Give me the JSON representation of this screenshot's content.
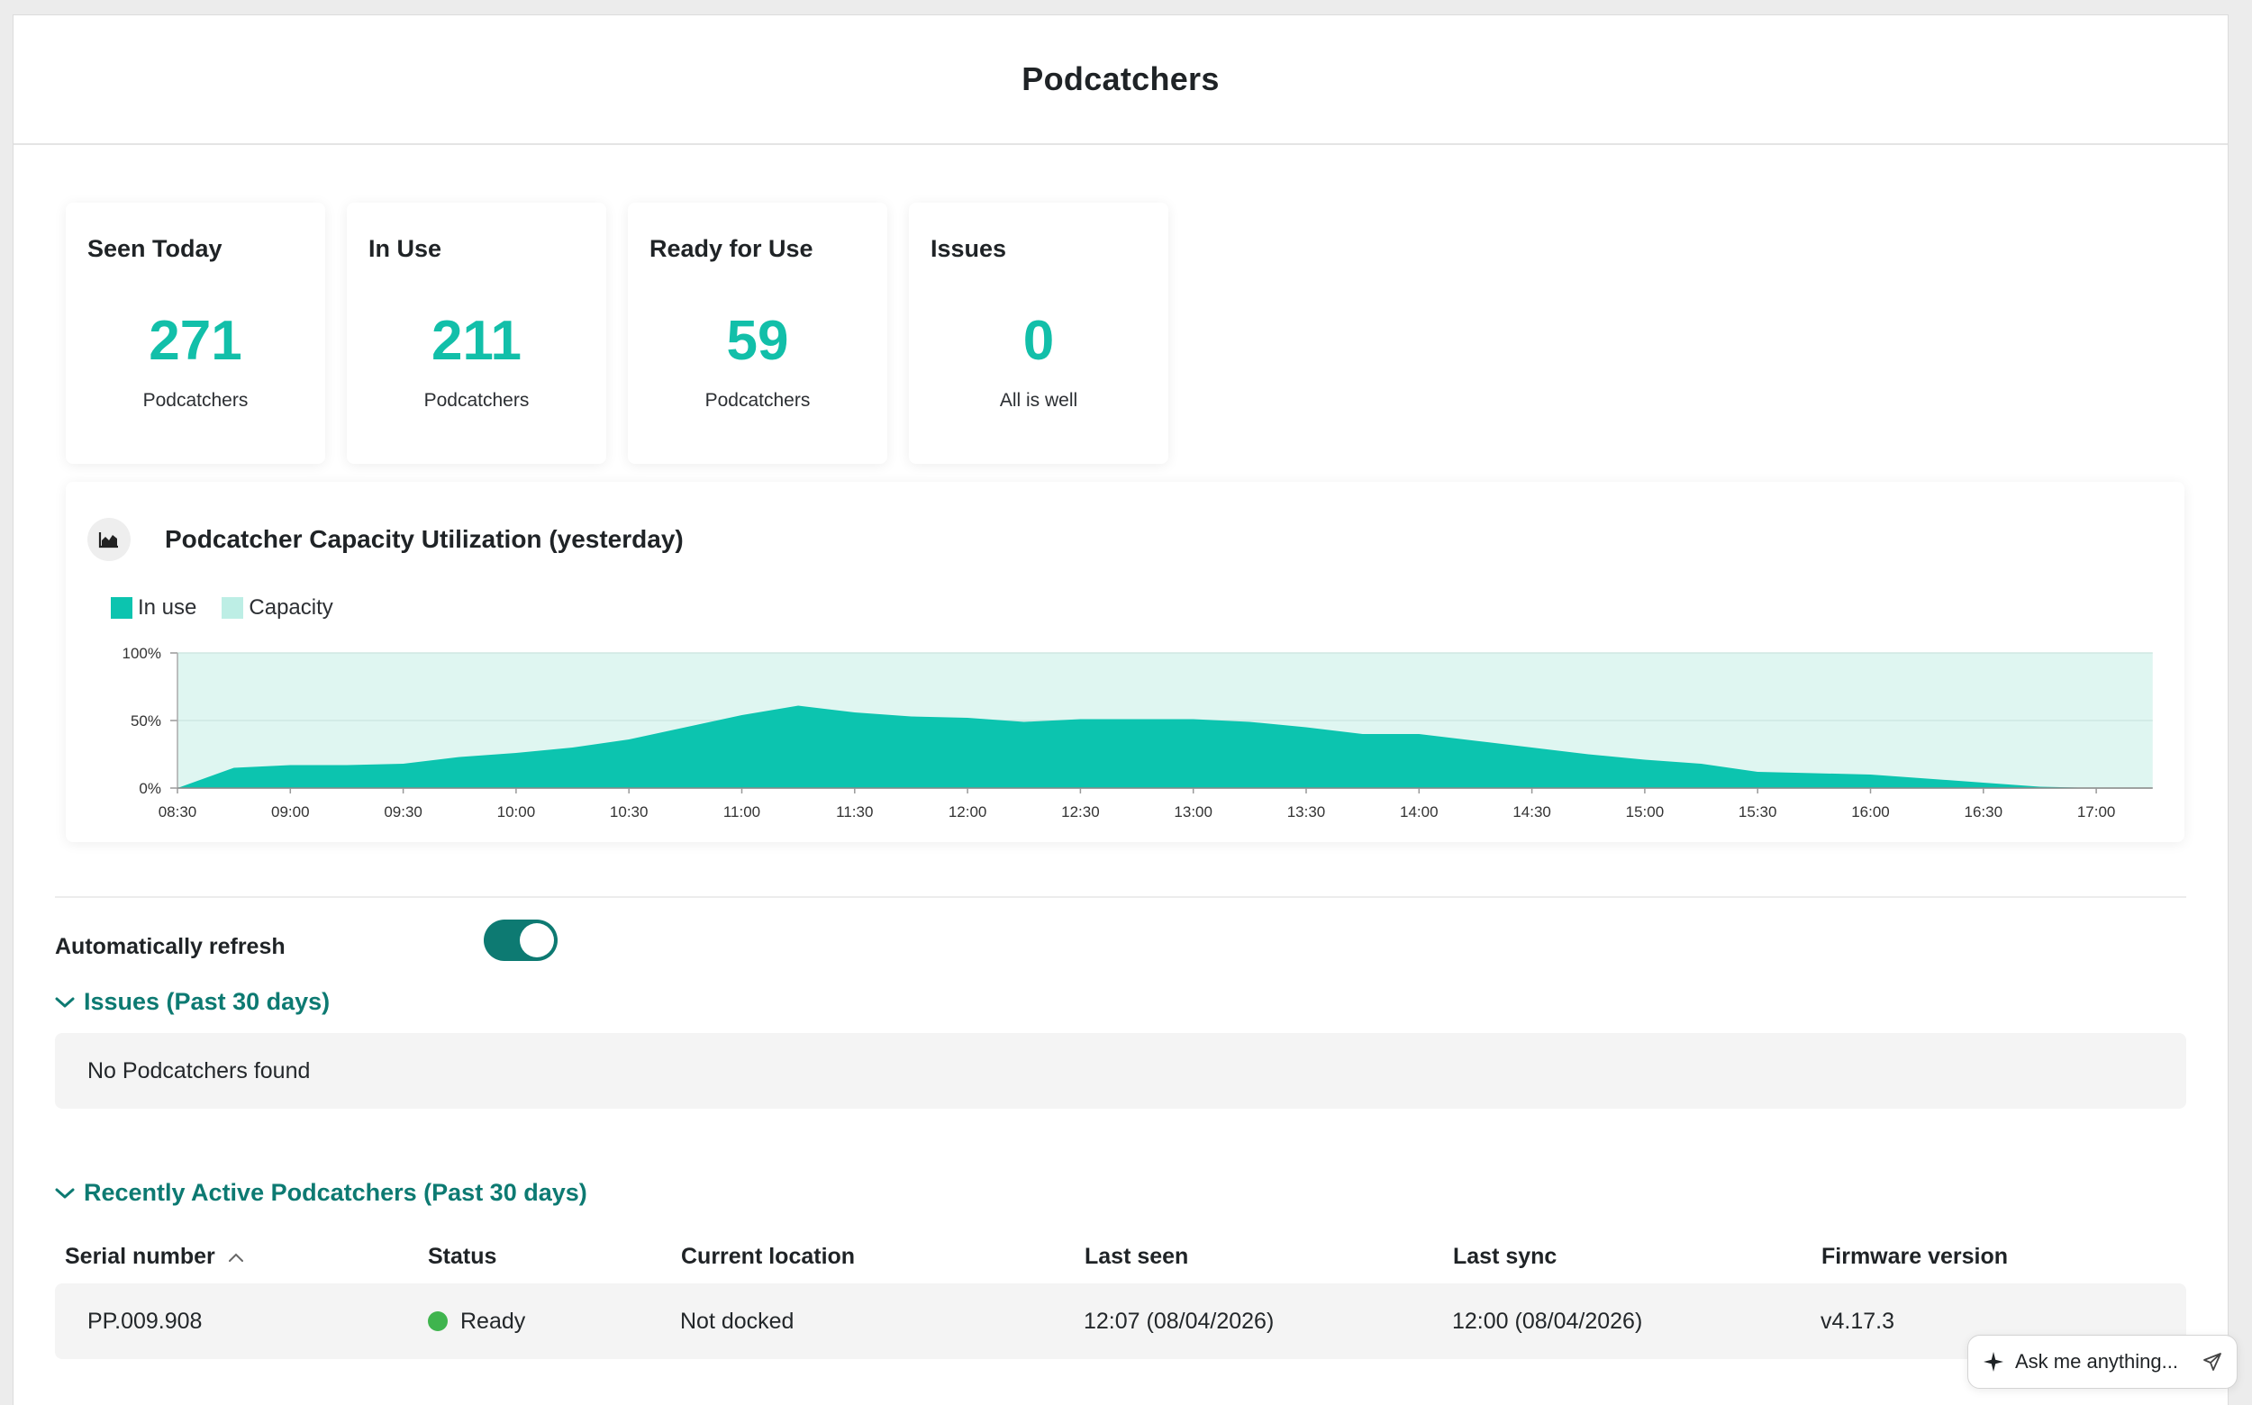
{
  "header": {
    "title": "Podcatchers"
  },
  "stats": [
    {
      "title": "Seen Today",
      "value": "271",
      "caption": "Podcatchers"
    },
    {
      "title": "In Use",
      "value": "211",
      "caption": "Podcatchers"
    },
    {
      "title": "Ready for Use",
      "value": "59",
      "caption": "Podcatchers"
    },
    {
      "title": "Issues",
      "value": "0",
      "caption": "All is well"
    }
  ],
  "chart": {
    "title": "Podcatcher Capacity Utilization (yesterday)",
    "legend": {
      "in_use": "In use",
      "capacity": "Capacity"
    },
    "colors": {
      "in_use": "#0cc4af",
      "capacity": "#dff6f1",
      "capacity_swatch": "#bdeee5"
    }
  },
  "chart_data": {
    "type": "area",
    "title": "Podcatcher Capacity Utilization (yesterday)",
    "xlabel": "",
    "ylabel": "",
    "x_ticks": [
      "08:30",
      "09:00",
      "09:30",
      "10:00",
      "10:30",
      "11:00",
      "11:30",
      "12:00",
      "12:30",
      "13:00",
      "13:30",
      "14:00",
      "14:30",
      "15:00",
      "15:30",
      "16:00",
      "16:30",
      "17:00"
    ],
    "y_ticks": [
      "0%",
      "50%",
      "100%"
    ],
    "ylim": [
      0,
      100
    ],
    "grid": true,
    "legend_position": "top-left",
    "series": [
      {
        "name": "In use",
        "x": [
          "08:30",
          "08:45",
          "09:00",
          "09:15",
          "09:30",
          "09:45",
          "10:00",
          "10:15",
          "10:30",
          "10:45",
          "11:00",
          "11:15",
          "11:30",
          "11:45",
          "12:00",
          "12:15",
          "12:30",
          "12:45",
          "13:00",
          "13:15",
          "13:30",
          "13:45",
          "14:00",
          "14:15",
          "14:30",
          "14:45",
          "15:00",
          "15:15",
          "15:30",
          "15:45",
          "16:00",
          "16:15",
          "16:30",
          "16:45",
          "17:00",
          "17:15"
        ],
        "values": [
          0,
          15,
          17,
          17,
          18,
          23,
          26,
          30,
          36,
          45,
          54,
          61,
          56,
          53,
          52,
          49,
          51,
          51,
          51,
          49,
          45,
          40,
          40,
          35,
          30,
          25,
          21,
          18,
          12,
          11,
          10,
          7,
          4,
          1,
          0,
          0
        ]
      },
      {
        "name": "Capacity",
        "x": [
          "08:30",
          "17:15"
        ],
        "values": [
          100,
          100
        ]
      }
    ]
  },
  "auto_refresh": {
    "label": "Automatically refresh",
    "enabled": true
  },
  "issues_section": {
    "title": "Issues (Past 30 days)",
    "empty_text": "No Podcatchers found"
  },
  "recent_section": {
    "title": "Recently Active Podcatchers (Past 30 days)",
    "columns": [
      "Serial number",
      "Status",
      "Current location",
      "Last seen",
      "Last sync",
      "Firmware version"
    ],
    "rows": [
      {
        "serial": "PP.009.908",
        "status": "Ready",
        "location": "Not docked",
        "last_seen": "12:07 (08/04/2026)",
        "last_sync": "12:00 (08/04/2026)",
        "firmware": "v4.17.3"
      }
    ]
  },
  "assistant": {
    "placeholder": "Ask me anything..."
  }
}
